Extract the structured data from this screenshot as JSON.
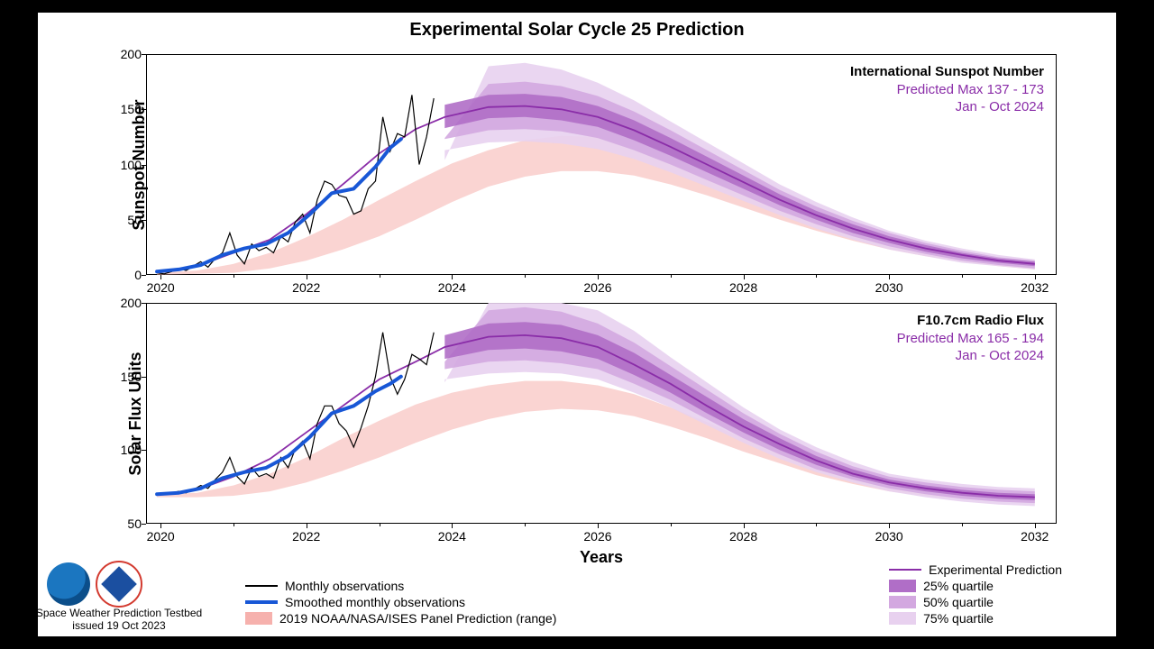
{
  "title": "Experimental Solar Cycle 25 Prediction",
  "xlabel": "Years",
  "background_color": "#ffffff",
  "page_background": "#000000",
  "x_axis": {
    "min": 2019.8,
    "max": 2032.3,
    "major_ticks": [
      2020,
      2022,
      2024,
      2026,
      2028,
      2030,
      2032
    ],
    "minor_step": 1
  },
  "colors": {
    "monthly_obs": "#000000",
    "smoothed": "#1857d6",
    "prediction": "#8a2da8",
    "q25": "#b06ec7",
    "q50": "#d3a8e0",
    "q75": "#e8d1ef",
    "panel_2019_fill": "#f6b1ad",
    "panel_2019_fill_opacity": 0.55,
    "grid": "#000000"
  },
  "line_widths": {
    "monthly_obs": 1.2,
    "smoothed": 4.0,
    "prediction": 1.8
  },
  "panels": [
    {
      "id": "panel-top",
      "ylabel": "Sunspot Number",
      "y_axis": {
        "min": 0,
        "max": 200,
        "ticks": [
          0,
          50,
          100,
          150,
          200
        ]
      },
      "annot": {
        "line1": "International Sunspot Number",
        "line2": "Predicted Max 137 - 173",
        "line3": "Jan - Oct 2024"
      },
      "monthly_obs": {
        "x": [
          2019.95,
          2020.05,
          2020.15,
          2020.25,
          2020.35,
          2020.45,
          2020.55,
          2020.65,
          2020.75,
          2020.85,
          2020.95,
          2021.05,
          2021.15,
          2021.25,
          2021.35,
          2021.45,
          2021.55,
          2021.65,
          2021.75,
          2021.85,
          2021.95,
          2022.05,
          2022.15,
          2022.25,
          2022.35,
          2022.45,
          2022.55,
          2022.65,
          2022.75,
          2022.85,
          2022.95,
          2023.05,
          2023.15,
          2023.25,
          2023.35,
          2023.45,
          2023.55,
          2023.65,
          2023.75
        ],
        "y": [
          2,
          1,
          3,
          6,
          4,
          8,
          12,
          7,
          15,
          20,
          38,
          18,
          10,
          28,
          22,
          25,
          20,
          35,
          30,
          48,
          55,
          38,
          68,
          85,
          82,
          72,
          70,
          55,
          58,
          78,
          85,
          143,
          112,
          128,
          125,
          163,
          100,
          125,
          160
        ]
      },
      "smoothed": {
        "x": [
          2019.95,
          2020.25,
          2020.55,
          2020.85,
          2021.15,
          2021.45,
          2021.75,
          2022.05,
          2022.35,
          2022.65,
          2022.95,
          2023.15,
          2023.3
        ],
        "y": [
          3,
          5,
          9,
          18,
          24,
          28,
          38,
          55,
          74,
          78,
          98,
          115,
          123
        ]
      },
      "prediction": {
        "x": [
          2020.0,
          2020.5,
          2021.0,
          2021.5,
          2022.0,
          2022.5,
          2023.0,
          2023.5,
          2023.9,
          2024.5,
          2025.0,
          2025.5,
          2026.0,
          2026.5,
          2027.0,
          2027.5,
          2028.0,
          2028.5,
          2029.0,
          2029.5,
          2030.0,
          2030.5,
          2031.0,
          2031.5,
          2032.0
        ],
        "y": [
          3,
          8,
          20,
          32,
          55,
          82,
          110,
          132,
          143,
          152,
          153,
          150,
          143,
          131,
          116,
          100,
          84,
          68,
          54,
          42,
          32,
          24,
          18,
          13,
          10
        ]
      },
      "q25": {
        "x": [
          2023.9,
          2024.5,
          2025.0,
          2025.5,
          2026.0,
          2026.5,
          2027.0,
          2027.5,
          2028.0,
          2028.5,
          2029.0,
          2029.5,
          2030.0,
          2030.5,
          2031.0,
          2031.5,
          2032.0
        ],
        "lo": [
          133,
          142,
          143,
          140,
          134,
          122,
          108,
          93,
          78,
          63,
          50,
          38,
          29,
          21,
          15,
          11,
          8
        ],
        "hi": [
          154,
          163,
          164,
          161,
          153,
          140,
          124,
          107,
          90,
          73,
          58,
          46,
          35,
          27,
          20,
          15,
          12
        ]
      },
      "q50": {
        "x": [
          2023.9,
          2024.5,
          2025.0,
          2025.5,
          2026.0,
          2026.5,
          2027.0,
          2027.5,
          2028.0,
          2028.5,
          2029.0,
          2029.5,
          2030.0,
          2030.5,
          2031.0,
          2031.5,
          2032.0
        ],
        "lo": [
          123,
          131,
          132,
          130,
          124,
          113,
          100,
          86,
          72,
          58,
          46,
          35,
          26,
          19,
          13,
          9,
          6
        ],
        "hi": [
          124,
          173,
          175,
          171,
          162,
          148,
          131,
          113,
          95,
          77,
          62,
          49,
          38,
          29,
          22,
          16,
          13
        ]
      },
      "q75": {
        "x": [
          2023.9,
          2024.5,
          2025.0,
          2025.5,
          2026.0,
          2026.5,
          2027.0,
          2027.5,
          2028.0,
          2028.5,
          2029.0,
          2029.5,
          2030.0,
          2030.5,
          2031.0,
          2031.5,
          2032.0
        ],
        "lo": [
          113,
          120,
          121,
          119,
          114,
          105,
          93,
          80,
          67,
          54,
          42,
          32,
          23,
          17,
          11,
          8,
          5
        ],
        "hi": [
          104,
          189,
          192,
          186,
          174,
          158,
          139,
          120,
          101,
          82,
          66,
          52,
          40,
          31,
          24,
          18,
          14
        ]
      },
      "panel_2019": {
        "x": [
          2019.95,
          2020.5,
          2021.0,
          2021.5,
          2022.0,
          2022.5,
          2023.0,
          2023.5,
          2024.0,
          2024.5,
          2025.0,
          2025.5,
          2026.0,
          2026.5,
          2027.0,
          2027.5,
          2028.0,
          2028.5,
          2029.0,
          2029.5,
          2030.0,
          2030.5,
          2031.0,
          2031.5,
          2032.0
        ],
        "lo": [
          0,
          1,
          2,
          6,
          13,
          23,
          35,
          50,
          66,
          80,
          89,
          94,
          94,
          90,
          82,
          72,
          61,
          50,
          40,
          31,
          23,
          17,
          12,
          8,
          5
        ],
        "hi": [
          2,
          4,
          10,
          20,
          34,
          50,
          68,
          85,
          101,
          113,
          122,
          126,
          125,
          119,
          108,
          95,
          81,
          67,
          54,
          42,
          32,
          24,
          17,
          12,
          8
        ]
      }
    },
    {
      "id": "panel-bot",
      "ylabel": "Solar Flux Units",
      "y_axis": {
        "min": 50,
        "max": 200,
        "ticks": [
          50,
          100,
          150,
          200
        ]
      },
      "annot": {
        "line1": "F10.7cm Radio Flux",
        "line2": "Predicted Max 165 - 194",
        "line3": "Jan - Oct 2024"
      },
      "monthly_obs": {
        "x": [
          2019.95,
          2020.05,
          2020.15,
          2020.25,
          2020.35,
          2020.45,
          2020.55,
          2020.65,
          2020.75,
          2020.85,
          2020.95,
          2021.05,
          2021.15,
          2021.25,
          2021.35,
          2021.45,
          2021.55,
          2021.65,
          2021.75,
          2021.85,
          2021.95,
          2022.05,
          2022.15,
          2022.25,
          2022.35,
          2022.45,
          2022.55,
          2022.65,
          2022.75,
          2022.85,
          2022.95,
          2023.05,
          2023.15,
          2023.25,
          2023.35,
          2023.45,
          2023.55,
          2023.65,
          2023.75
        ],
        "y": [
          70,
          70,
          71,
          72,
          71,
          73,
          76,
          74,
          80,
          85,
          95,
          82,
          77,
          88,
          82,
          84,
          81,
          95,
          88,
          101,
          106,
          94,
          118,
          130,
          130,
          118,
          113,
          102,
          115,
          130,
          150,
          180,
          150,
          138,
          148,
          165,
          162,
          158,
          180
        ]
      },
      "smoothed": {
        "x": [
          2019.95,
          2020.25,
          2020.55,
          2020.85,
          2021.15,
          2021.45,
          2021.75,
          2022.05,
          2022.35,
          2022.65,
          2022.95,
          2023.15,
          2023.3
        ],
        "y": [
          70,
          71,
          74,
          81,
          85,
          88,
          96,
          109,
          125,
          130,
          140,
          145,
          150
        ]
      },
      "prediction": {
        "x": [
          2020.0,
          2020.5,
          2021.0,
          2021.5,
          2022.0,
          2022.5,
          2023.0,
          2023.5,
          2023.9,
          2024.5,
          2025.0,
          2025.5,
          2026.0,
          2026.5,
          2027.0,
          2027.5,
          2028.0,
          2028.5,
          2029.0,
          2029.5,
          2030.0,
          2030.5,
          2031.0,
          2031.5,
          2032.0
        ],
        "y": [
          70,
          73,
          82,
          94,
          112,
          130,
          148,
          160,
          170,
          177,
          178,
          176,
          170,
          158,
          145,
          130,
          116,
          104,
          93,
          84,
          78,
          74,
          71,
          69,
          68
        ]
      },
      "q25": {
        "x": [
          2023.9,
          2024.5,
          2025.0,
          2025.5,
          2026.0,
          2026.5,
          2027.0,
          2027.5,
          2028.0,
          2028.5,
          2029.0,
          2029.5,
          2030.0,
          2030.5,
          2031.0,
          2031.5,
          2032.0
        ],
        "lo": [
          162,
          168,
          169,
          167,
          162,
          151,
          139,
          125,
          112,
          100,
          90,
          82,
          76,
          72,
          69,
          67,
          66
        ],
        "hi": [
          178,
          186,
          187,
          185,
          178,
          166,
          151,
          136,
          121,
          108,
          96,
          87,
          80,
          76,
          73,
          71,
          70
        ]
      },
      "q50": {
        "x": [
          2023.9,
          2024.5,
          2025.0,
          2025.5,
          2026.0,
          2026.5,
          2027.0,
          2027.5,
          2028.0,
          2028.5,
          2029.0,
          2029.5,
          2030.0,
          2030.5,
          2031.0,
          2031.5,
          2032.0
        ],
        "lo": [
          155,
          160,
          161,
          159,
          155,
          145,
          134,
          121,
          108,
          97,
          87,
          80,
          74,
          70,
          67,
          65,
          64
        ],
        "hi": [
          160,
          195,
          197,
          194,
          186,
          173,
          157,
          141,
          125,
          111,
          99,
          89,
          82,
          78,
          75,
          73,
          72
        ]
      },
      "q75": {
        "x": [
          2023.9,
          2024.5,
          2025.0,
          2025.5,
          2026.0,
          2026.5,
          2027.0,
          2027.5,
          2028.0,
          2028.5,
          2029.0,
          2029.5,
          2030.0,
          2030.5,
          2031.0,
          2031.5,
          2032.0
        ],
        "lo": [
          148,
          152,
          153,
          152,
          148,
          139,
          129,
          117,
          105,
          94,
          85,
          78,
          72,
          68,
          65,
          63,
          62
        ],
        "hi": [
          146,
          200,
          200,
          200,
          195,
          181,
          163,
          146,
          129,
          114,
          102,
          92,
          84,
          80,
          77,
          75,
          74
        ]
      },
      "panel_2019": {
        "x": [
          2019.95,
          2020.5,
          2021.0,
          2021.5,
          2022.0,
          2022.5,
          2023.0,
          2023.5,
          2024.0,
          2024.5,
          2025.0,
          2025.5,
          2026.0,
          2026.5,
          2027.0,
          2027.5,
          2028.0,
          2028.5,
          2029.0,
          2029.5,
          2030.0,
          2030.5,
          2031.0,
          2031.5,
          2032.0
        ],
        "lo": [
          68,
          68,
          69,
          72,
          78,
          86,
          95,
          105,
          114,
          121,
          126,
          128,
          127,
          123,
          116,
          108,
          99,
          91,
          83,
          77,
          72,
          69,
          67,
          65,
          64
        ],
        "hi": [
          70,
          71,
          76,
          84,
          95,
          108,
          120,
          131,
          139,
          144,
          147,
          147,
          144,
          138,
          129,
          119,
          108,
          98,
          89,
          82,
          76,
          72,
          69,
          67,
          66
        ]
      }
    }
  ],
  "legend": {
    "left": [
      {
        "label": "Monthly observations",
        "style": "line",
        "color": "#000000",
        "width": 2
      },
      {
        "label": "Smoothed monthly observations",
        "style": "line",
        "color": "#1857d6",
        "width": 4
      },
      {
        "label": "2019 NOAA/NASA/ISES Panel Prediction (range)",
        "style": "box",
        "color": "#f6b1ad"
      }
    ],
    "right": [
      {
        "label": "Experimental Prediction",
        "style": "line",
        "color": "#8a2da8",
        "width": 2
      },
      {
        "label": "25% quartile",
        "style": "box",
        "color": "#b06ec7"
      },
      {
        "label": "50% quartile",
        "style": "box",
        "color": "#d3a8e0"
      },
      {
        "label": "75% quartile",
        "style": "box",
        "color": "#e8d1ef"
      }
    ]
  },
  "credit": {
    "line1": "Space Weather Prediction Testbed",
    "line2": "issued 19 Oct 2023"
  }
}
